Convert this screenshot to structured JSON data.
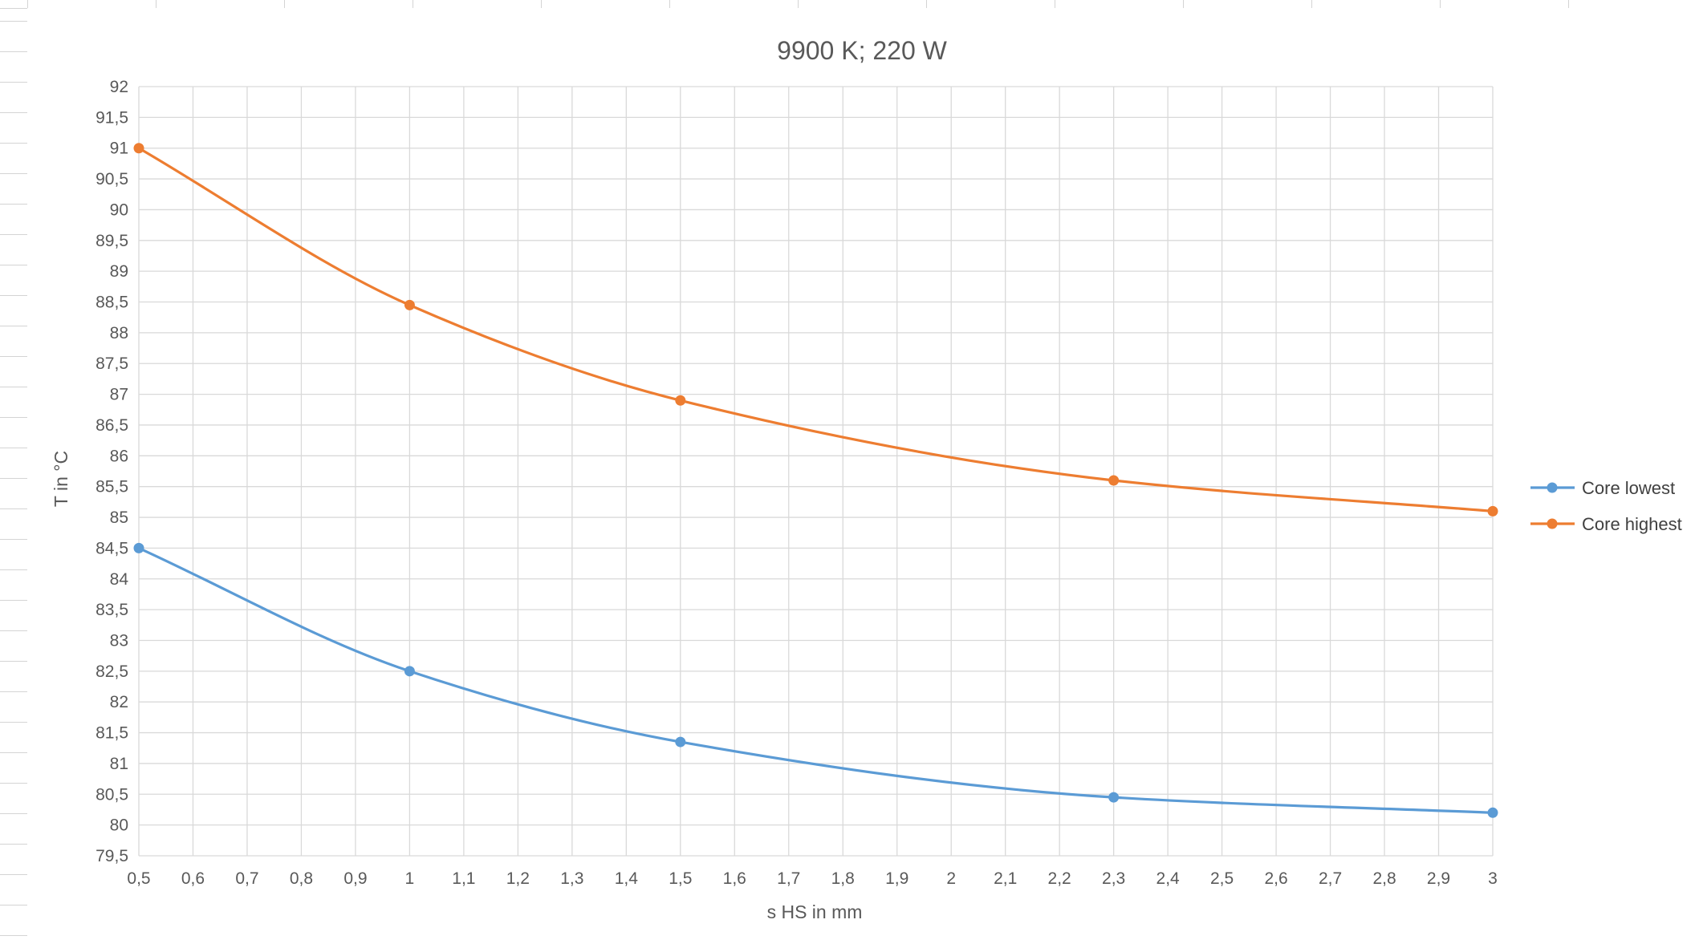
{
  "chart_data": {
    "type": "line",
    "title": "9900 K; 220 W",
    "xlabel": "s HS in mm",
    "ylabel": "T in °C",
    "xlim": [
      0.5,
      3
    ],
    "ylim": [
      79.5,
      92
    ],
    "x_ticks": [
      "0,5",
      "0,6",
      "0,7",
      "0,8",
      "0,9",
      "1",
      "1,1",
      "1,2",
      "1,3",
      "1,4",
      "1,5",
      "1,6",
      "1,7",
      "1,8",
      "1,9",
      "2",
      "2,1",
      "2,2",
      "2,3",
      "2,4",
      "2,5",
      "2,6",
      "2,7",
      "2,8",
      "2,9",
      "3"
    ],
    "y_ticks": [
      "79,5",
      "80",
      "80,5",
      "81",
      "81,5",
      "82",
      "82,5",
      "83",
      "83,5",
      "84",
      "84,5",
      "85",
      "85,5",
      "86",
      "86,5",
      "87",
      "87,5",
      "88",
      "88,5",
      "89",
      "89,5",
      "90",
      "90,5",
      "91",
      "91,5",
      "92"
    ],
    "grid": true,
    "legend_position": "right",
    "smooth": true,
    "series": [
      {
        "name": "Core lowest",
        "color": "#5B9BD5",
        "x": [
          0.5,
          1,
          1.5,
          2.3,
          3
        ],
        "y": [
          84.5,
          82.5,
          81.35,
          80.45,
          80.2
        ]
      },
      {
        "name": "Core highest",
        "color": "#ED7D31",
        "x": [
          0.5,
          1,
          1.5,
          2.3,
          3
        ],
        "y": [
          91,
          88.45,
          86.9,
          85.6,
          85.1
        ]
      }
    ]
  }
}
